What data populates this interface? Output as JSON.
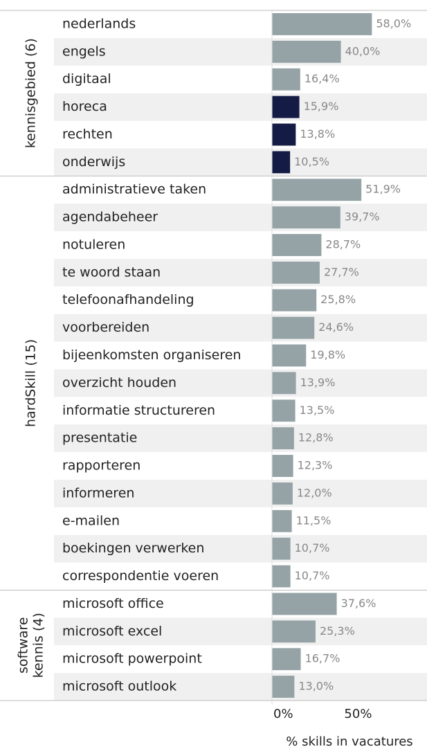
{
  "chart_data": {
    "type": "bar",
    "xlabel": "% skills in vacatures",
    "xlim": [
      0,
      90
    ],
    "xticks": [
      {
        "value": 0,
        "label": "0%"
      },
      {
        "value": 50,
        "label": "50%"
      }
    ],
    "groups": [
      {
        "label": [
          "kennisgebied (6)"
        ],
        "categories": [
          "nederlands",
          "engels",
          "digitaal",
          "horeca",
          "rechten",
          "onderwijs"
        ],
        "values": [
          58.0,
          40.0,
          16.4,
          15.9,
          13.8,
          10.5
        ],
        "value_labels": [
          "58,0%",
          "40,0%",
          "16,4%",
          "15,9%",
          "13,8%",
          "10,5%"
        ],
        "colors": [
          "#95a3a6",
          "#95a3a6",
          "#95a3a6",
          "#141b45",
          "#141b45",
          "#141b45"
        ]
      },
      {
        "label": [
          "hardSkill (15)"
        ],
        "categories": [
          "administratieve taken",
          "agendabeheer",
          "notuleren",
          "te woord staan",
          "telefoonafhandeling",
          "voorbereiden",
          "bijeenkomsten organiseren",
          "overzicht houden",
          "informatie structureren",
          "presentatie",
          "rapporteren",
          "informeren",
          "e-mailen",
          "boekingen verwerken",
          "correspondentie voeren"
        ],
        "values": [
          51.9,
          39.7,
          28.7,
          27.7,
          25.8,
          24.6,
          19.8,
          13.9,
          13.5,
          12.8,
          12.3,
          12.0,
          11.5,
          10.7,
          10.7
        ],
        "value_labels": [
          "51,9%",
          "39,7%",
          "28,7%",
          "27,7%",
          "25,8%",
          "24,6%",
          "19,8%",
          "13,9%",
          "13,5%",
          "12,8%",
          "12,3%",
          "12,0%",
          "11,5%",
          "10,7%",
          "10,7%"
        ],
        "colors": [
          "#95a3a6",
          "#95a3a6",
          "#95a3a6",
          "#95a3a6",
          "#95a3a6",
          "#95a3a6",
          "#95a3a6",
          "#95a3a6",
          "#95a3a6",
          "#95a3a6",
          "#95a3a6",
          "#95a3a6",
          "#95a3a6",
          "#95a3a6",
          "#95a3a6"
        ]
      },
      {
        "label": [
          "software",
          "kennis (4)"
        ],
        "categories": [
          "microsoft office",
          "microsoft excel",
          "microsoft powerpoint",
          "microsoft outlook"
        ],
        "values": [
          37.6,
          25.3,
          16.7,
          13.0
        ],
        "value_labels": [
          "37,6%",
          "25,3%",
          "16,7%",
          "13,0%"
        ],
        "colors": [
          "#95a3a6",
          "#95a3a6",
          "#95a3a6",
          "#95a3a6"
        ]
      }
    ]
  }
}
